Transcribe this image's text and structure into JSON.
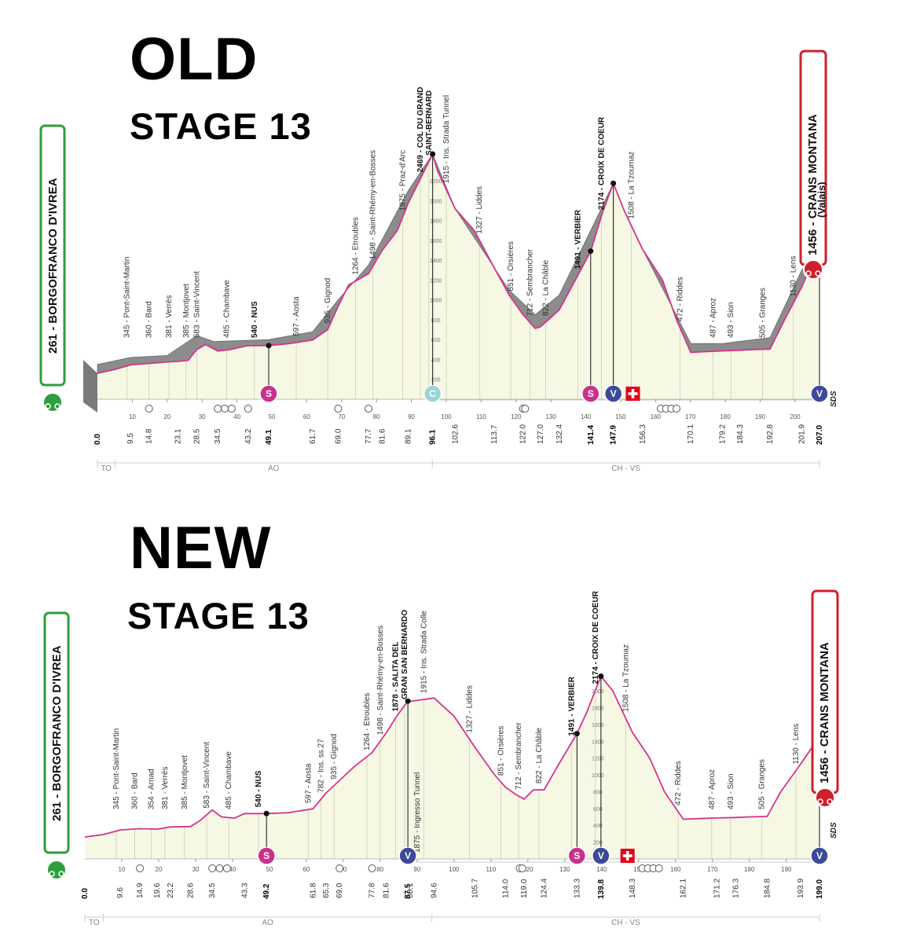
{
  "titles": {
    "old_title": "OLD",
    "old_subtitle": "STAGE 13",
    "new_title": "NEW",
    "new_subtitle": "STAGE 13"
  },
  "colors": {
    "profile_line": "#d6338f",
    "climb_band": "#8c8c8c",
    "fill": "#f6f8e4",
    "start_box": "#2e9e3e",
    "finish_box": "#d01f2c",
    "sprint": "#c8328c",
    "gpm": "#9ad6d6",
    "feed": "#3d4a99",
    "border": "#e2001a"
  },
  "chart_data": [
    {
      "type": "area",
      "name": "OLD",
      "start": "261 - BORGOFRANCO D'IVREA",
      "finish": "1456 - CRANS MONTANA",
      "finish_sub": "(Valais)",
      "xlim": [
        0,
        207
      ],
      "ylim": [
        0,
        2600
      ],
      "axis_ticks": [
        10,
        20,
        30,
        40,
        50,
        60,
        70,
        80,
        90,
        100,
        110,
        120,
        130,
        140,
        150,
        160,
        170,
        180,
        190,
        200
      ],
      "elevation_ticks": [
        200,
        400,
        600,
        800,
        1000,
        1200,
        1400,
        1600,
        1800,
        2000,
        2200
      ],
      "regions": [
        "TO",
        "AO",
        "CH - VS"
      ],
      "region_bounds": [
        0,
        5,
        96,
        207
      ],
      "sds": "SDS",
      "profile": [
        [
          0,
          261
        ],
        [
          5,
          300
        ],
        [
          9.5,
          345
        ],
        [
          14.8,
          360
        ],
        [
          20,
          375
        ],
        [
          23.1,
          381
        ],
        [
          26,
          390
        ],
        [
          28.5,
          500
        ],
        [
          31,
          550
        ],
        [
          34.5,
          485
        ],
        [
          38,
          500
        ],
        [
          43.2,
          540
        ],
        [
          49.1,
          540
        ],
        [
          55,
          560
        ],
        [
          61.7,
          597
        ],
        [
          66,
          700
        ],
        [
          69,
          935
        ],
        [
          72,
          1150
        ],
        [
          77.7,
          1264
        ],
        [
          81.6,
          1498
        ],
        [
          86,
          1700
        ],
        [
          89.1,
          1975
        ],
        [
          93,
          2250
        ],
        [
          96.1,
          2469
        ],
        [
          97.5,
          2300
        ],
        [
          102.6,
          1915
        ],
        [
          108,
          1700
        ],
        [
          113.7,
          1327
        ],
        [
          118,
          1050
        ],
        [
          122,
          851
        ],
        [
          125.5,
          712
        ],
        [
          127,
          730
        ],
        [
          130,
          822
        ],
        [
          132.4,
          900
        ],
        [
          137,
          1200
        ],
        [
          141.4,
          1491
        ],
        [
          145,
          1900
        ],
        [
          147.9,
          2174
        ],
        [
          151,
          1900
        ],
        [
          156.3,
          1508
        ],
        [
          162,
          1200
        ],
        [
          166,
          800
        ],
        [
          170.1,
          472
        ],
        [
          175,
          480
        ],
        [
          179.2,
          487
        ],
        [
          184.3,
          493
        ],
        [
          188,
          500
        ],
        [
          192.8,
          505
        ],
        [
          197,
          800
        ],
        [
          201.9,
          1130
        ],
        [
          204,
          1300
        ],
        [
          207,
          1456
        ]
      ],
      "band": [
        [
          0,
          350
        ],
        [
          9.5,
          420
        ],
        [
          20,
          440
        ],
        [
          28.5,
          640
        ],
        [
          33.4,
          580
        ],
        [
          49.1,
          600
        ],
        [
          61.7,
          680
        ],
        [
          69,
          1000
        ],
        [
          77.7,
          1350
        ],
        [
          89.1,
          2100
        ],
        [
          96.1,
          2469
        ],
        [
          102.6,
          1915
        ],
        [
          118,
          1100
        ],
        [
          125.5,
          850
        ],
        [
          132.4,
          1050
        ],
        [
          141.4,
          1700
        ],
        [
          147.9,
          2174
        ],
        [
          151,
          1900
        ],
        [
          156.3,
          1508
        ],
        [
          170.1,
          560
        ],
        [
          179.2,
          560
        ],
        [
          192.8,
          620
        ],
        [
          201.9,
          1300
        ],
        [
          204.3,
          1390
        ],
        [
          207,
          1456
        ]
      ],
      "places": [
        {
          "km": 8.5,
          "label": "345 - Pont-Saint-Martin"
        },
        {
          "km": 14.8,
          "label": "360 - Bard"
        },
        {
          "km": 20.5,
          "label": "381 - Verrès"
        },
        {
          "km": 25.4,
          "label": "385 - Montjovet"
        },
        {
          "km": 28.5,
          "label": "583 - Saint-Vincent"
        },
        {
          "km": 37,
          "label": "485 - Chambave"
        },
        {
          "km": 45,
          "label": "540 - NUS",
          "bold": true
        },
        {
          "km": 57,
          "label": "597 - Aosta"
        },
        {
          "km": 66,
          "label": "935 - Gignod"
        },
        {
          "km": 74,
          "label": "1264 - Etroubles"
        },
        {
          "km": 79,
          "label": "1498 - Saint-Rhémy-en-Bosses"
        },
        {
          "km": 87.5,
          "label": "1975 - Praz-d'Arc"
        },
        {
          "km": 92.6,
          "label": "2469 - COL DU GRAND",
          "bold": true
        },
        {
          "km": 95,
          "label": "SAINT-BERNARD",
          "bold": true
        },
        {
          "km": 100,
          "label": "1915 - Ins. Strada Tunnel"
        },
        {
          "km": 109.5,
          "label": "1327 - Liddes"
        },
        {
          "km": 118.5,
          "label": "851 - Orsières"
        },
        {
          "km": 124,
          "label": "712 - Sembrancher"
        },
        {
          "km": 128.5,
          "label": "822 - La Châble"
        },
        {
          "km": 137.7,
          "label": "1491 - VERBIER",
          "bold": true
        },
        {
          "km": 144.5,
          "label": "2174 - CROIX DE COEUR",
          "bold": true
        },
        {
          "km": 153,
          "label": "1508 - La Tzoumaz"
        },
        {
          "km": 167,
          "label": "472 - Riddes"
        },
        {
          "km": 176.5,
          "label": "487 - Aproz"
        },
        {
          "km": 181.6,
          "label": "493 - Sion"
        },
        {
          "km": 190.7,
          "label": "505 - Granges"
        },
        {
          "km": 199.5,
          "label": "1130 - Lens"
        }
      ],
      "kms": [
        {
          "km": 0,
          "label": "0.0",
          "bold": true
        },
        {
          "km": 9.5,
          "label": "9.5"
        },
        {
          "km": 14.8,
          "label": "14.8"
        },
        {
          "km": 23.1,
          "label": "23.1"
        },
        {
          "km": 28.5,
          "label": "28.5"
        },
        {
          "km": 34.5,
          "label": "34.5"
        },
        {
          "km": 43.2,
          "label": "43.2"
        },
        {
          "km": 49.1,
          "label": "49.1",
          "bold": true
        },
        {
          "km": 61.7,
          "label": "61.7"
        },
        {
          "km": 69.0,
          "label": "69.0"
        },
        {
          "km": 77.7,
          "label": "77.7"
        },
        {
          "km": 81.6,
          "label": "81.6"
        },
        {
          "km": 89.1,
          "label": "89.1"
        },
        {
          "km": 96.1,
          "label": "96.1",
          "bold": true
        },
        {
          "km": 102.6,
          "label": "102.6"
        },
        {
          "km": 113.7,
          "label": "113.7"
        },
        {
          "km": 122.0,
          "label": "122.0"
        },
        {
          "km": 127.0,
          "label": "127.0"
        },
        {
          "km": 132.4,
          "label": "132.4"
        },
        {
          "km": 141.4,
          "label": "141.4",
          "bold": true
        },
        {
          "km": 147.9,
          "label": "147.9",
          "bold": true
        },
        {
          "km": 156.3,
          "label": "156.3"
        },
        {
          "km": 170.1,
          "label": "170.1"
        },
        {
          "km": 179.2,
          "label": "179.2"
        },
        {
          "km": 184.3,
          "label": "184.3"
        },
        {
          "km": 192.8,
          "label": "192.8"
        },
        {
          "km": 201.9,
          "label": "201.9"
        },
        {
          "km": 207.0,
          "label": "207.0",
          "bold": true
        }
      ],
      "markers": [
        {
          "km": 49.1,
          "type": "sprint",
          "text": "S"
        },
        {
          "km": 96.1,
          "type": "gpm",
          "text": "C"
        },
        {
          "km": 141.4,
          "type": "sprint",
          "text": "S"
        },
        {
          "km": 147.9,
          "type": "feed",
          "text": "V"
        },
        {
          "km": 207,
          "type": "feed",
          "text": "V"
        }
      ],
      "border_km": 153.5,
      "tunnels": [
        14.8,
        34.5,
        36.5,
        38.5,
        43.2,
        69.0,
        77.7,
        122.0,
        122.6,
        161.5,
        163.0,
        164.5,
        166.0
      ]
    },
    {
      "type": "area",
      "name": "NEW",
      "start": "261 - BORGOFRANCO D'IVREA",
      "finish": "1456 - CRANS MONTANA",
      "xlim": [
        0,
        199
      ],
      "ylim": [
        0,
        2600
      ],
      "axis_ticks": [
        10,
        20,
        30,
        40,
        50,
        60,
        70,
        80,
        90,
        100,
        110,
        120,
        130,
        140,
        150,
        160,
        170,
        180,
        190
      ],
      "elevation_ticks": [
        200,
        400,
        600,
        800,
        1000,
        1200,
        1400,
        1600,
        1800,
        2000
      ],
      "regions": [
        "TO",
        "AO",
        "CH - VS"
      ],
      "region_bounds": [
        0,
        5,
        94,
        199
      ],
      "sds": "SDS",
      "profile": [
        [
          0,
          261
        ],
        [
          5,
          290
        ],
        [
          9.6,
          345
        ],
        [
          14.9,
          360
        ],
        [
          19.6,
          354
        ],
        [
          23.2,
          381
        ],
        [
          28.6,
          385
        ],
        [
          31,
          450
        ],
        [
          34.5,
          583
        ],
        [
          37,
          500
        ],
        [
          40.5,
          485
        ],
        [
          43.3,
          540
        ],
        [
          49.2,
          540
        ],
        [
          55,
          550
        ],
        [
          61.8,
          597
        ],
        [
          65.3,
          782
        ],
        [
          69,
          935
        ],
        [
          73,
          1100
        ],
        [
          77.8,
          1264
        ],
        [
          81.6,
          1498
        ],
        [
          84.5,
          1700
        ],
        [
          87.5,
          1878
        ],
        [
          88.1,
          1875
        ],
        [
          94.6,
          1915
        ],
        [
          100,
          1700
        ],
        [
          105.7,
          1327
        ],
        [
          111,
          1000
        ],
        [
          114,
          851
        ],
        [
          117,
          760
        ],
        [
          119,
          712
        ],
        [
          121.5,
          822
        ],
        [
          124.4,
          822
        ],
        [
          128,
          1100
        ],
        [
          133.3,
          1491
        ],
        [
          136,
          1750
        ],
        [
          139.8,
          2174
        ],
        [
          143,
          2000
        ],
        [
          148.3,
          1508
        ],
        [
          153,
          1200
        ],
        [
          157,
          800
        ],
        [
          162.1,
          472
        ],
        [
          166,
          480
        ],
        [
          171.2,
          487
        ],
        [
          176.3,
          493
        ],
        [
          180,
          500
        ],
        [
          184.8,
          505
        ],
        [
          188.5,
          800
        ],
        [
          193.9,
          1130
        ],
        [
          199,
          1456
        ]
      ],
      "band": [],
      "places": [
        {
          "km": 8.5,
          "label": "345 - Pont-Saint-Martin"
        },
        {
          "km": 13.5,
          "label": "360 - Bard"
        },
        {
          "km": 18,
          "label": "354 - Arnad"
        },
        {
          "km": 21.7,
          "label": "381 - Verrès"
        },
        {
          "km": 27,
          "label": "385 - Montjovet"
        },
        {
          "km": 33,
          "label": "583 - Saint-Vincent"
        },
        {
          "km": 39,
          "label": "485 - Chambave"
        },
        {
          "km": 47,
          "label": "540 - NUS",
          "bold": true
        },
        {
          "km": 60.5,
          "label": "597 - Aosta"
        },
        {
          "km": 64,
          "label": "782 - Ins. ss.27"
        },
        {
          "km": 67.5,
          "label": "935 - Gignod"
        },
        {
          "km": 76.4,
          "label": "1264 - Etroubles"
        },
        {
          "km": 80,
          "label": "1498 - Saint-Rhémy-en-Bosses"
        },
        {
          "km": 84.2,
          "label": "1878 - SALITA DEL",
          "bold": true
        },
        {
          "km": 86.6,
          "label": "GRAN SAN BERNARDO",
          "bold": true
        },
        {
          "km": 91.8,
          "label": "1915 - Ins. Strada Colle"
        },
        {
          "km": 90,
          "label": "1875 - Ingresso Tunnel",
          "low": true
        },
        {
          "km": 104.2,
          "label": "1327 - Liddes"
        },
        {
          "km": 112.7,
          "label": "851 - Orsières"
        },
        {
          "km": 117.5,
          "label": "712 - Sembrancher"
        },
        {
          "km": 123,
          "label": "822 - La Châble"
        },
        {
          "km": 131.9,
          "label": "1491 - VERBIER",
          "bold": true
        },
        {
          "km": 138.3,
          "label": "2174 - CROIX DE COEUR",
          "bold": true
        },
        {
          "km": 146.5,
          "label": "1508 - La Tzoumaz"
        },
        {
          "km": 160.7,
          "label": "472 - Riddes"
        },
        {
          "km": 169.8,
          "label": "487 - Aproz"
        },
        {
          "km": 174.9,
          "label": "493 - Sion"
        },
        {
          "km": 183.4,
          "label": "505 - Granges"
        },
        {
          "km": 192.6,
          "label": "1130 - Lens"
        }
      ],
      "kms": [
        {
          "km": 0,
          "label": "0.0",
          "bold": true
        },
        {
          "km": 9.6,
          "label": "9.6"
        },
        {
          "km": 14.9,
          "label": "14.9"
        },
        {
          "km": 19.6,
          "label": "19.6"
        },
        {
          "km": 23.2,
          "label": "23.2"
        },
        {
          "km": 28.6,
          "label": "28.6"
        },
        {
          "km": 34.5,
          "label": "34.5"
        },
        {
          "km": 43.3,
          "label": "43.3"
        },
        {
          "km": 49.2,
          "label": "49.2",
          "bold": true
        },
        {
          "km": 61.8,
          "label": "61.8"
        },
        {
          "km": 65.3,
          "label": "65.3"
        },
        {
          "km": 69.0,
          "label": "69.0"
        },
        {
          "km": 77.8,
          "label": "77.8"
        },
        {
          "km": 81.6,
          "label": "81.6"
        },
        {
          "km": 87.5,
          "label": "87.5",
          "bold": true
        },
        {
          "km": 88.1,
          "label": "88.1"
        },
        {
          "km": 94.6,
          "label": "94.6"
        },
        {
          "km": 105.7,
          "label": "105.7"
        },
        {
          "km": 114.0,
          "label": "114.0"
        },
        {
          "km": 119.0,
          "label": "119.0"
        },
        {
          "km": 124.4,
          "label": "124.4"
        },
        {
          "km": 133.3,
          "label": "133.3"
        },
        {
          "km": 139.8,
          "label": "139.8",
          "bold": true
        },
        {
          "km": 148.3,
          "label": "148.3"
        },
        {
          "km": 162.1,
          "label": "162.1"
        },
        {
          "km": 171.2,
          "label": "171.2"
        },
        {
          "km": 176.3,
          "label": "176.3"
        },
        {
          "km": 184.8,
          "label": "184.8"
        },
        {
          "km": 193.9,
          "label": "193.9"
        },
        {
          "km": 199.0,
          "label": "199.0",
          "bold": true
        }
      ],
      "markers": [
        {
          "km": 49.2,
          "type": "sprint",
          "text": "S"
        },
        {
          "km": 87.5,
          "type": "feed",
          "text": "V"
        },
        {
          "km": 133.3,
          "type": "sprint",
          "text": "S"
        },
        {
          "km": 139.8,
          "type": "feed",
          "text": "V"
        },
        {
          "km": 199,
          "type": "feed",
          "text": "V"
        }
      ],
      "border_km": 147,
      "tunnels": [
        14.9,
        34.5,
        36.5,
        38.5,
        69.0,
        77.8,
        117.8,
        118.5,
        151,
        152.5,
        154,
        155.5
      ]
    }
  ]
}
